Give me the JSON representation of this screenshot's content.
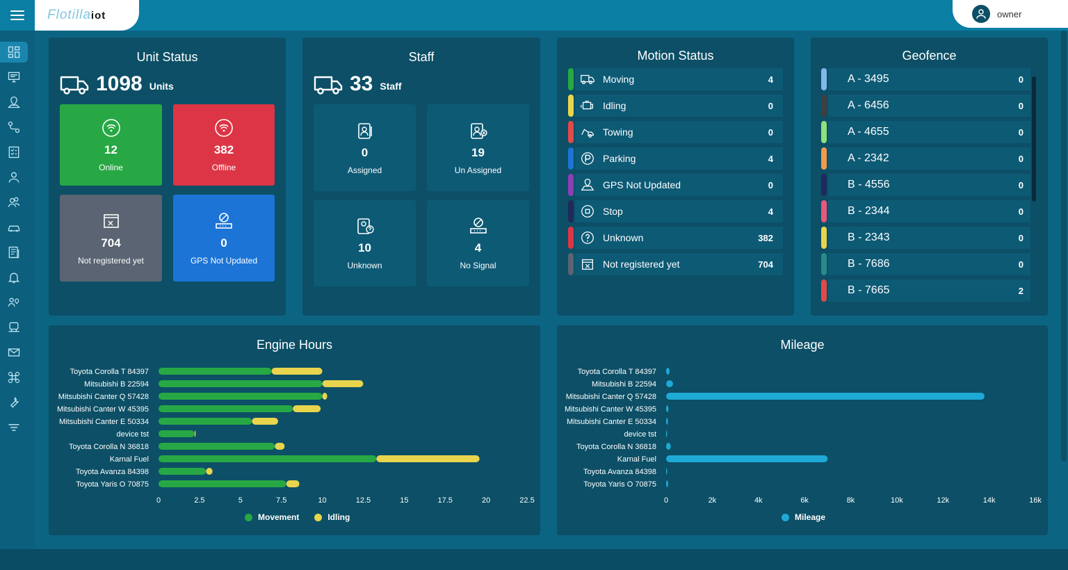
{
  "app": {
    "logo_text": "Flotilla",
    "logo_suffix": "iot"
  },
  "user": {
    "name": "owner"
  },
  "sidebar": {
    "items": [
      {
        "icon": "dashboard-icon"
      },
      {
        "icon": "monitor-icon"
      },
      {
        "icon": "map-pin-icon"
      },
      {
        "icon": "route-icon"
      },
      {
        "icon": "checklist-icon"
      },
      {
        "icon": "user-icon"
      },
      {
        "icon": "users-icon"
      },
      {
        "icon": "car-icon"
      },
      {
        "icon": "report-icon"
      },
      {
        "icon": "bell-icon"
      },
      {
        "icon": "location-user-icon"
      },
      {
        "icon": "device-icon"
      },
      {
        "icon": "mail-icon"
      },
      {
        "icon": "command-icon"
      },
      {
        "icon": "wrench-icon"
      },
      {
        "icon": "filter-icon"
      }
    ]
  },
  "unit_status": {
    "title": "Unit Status",
    "count": "1098",
    "unit": "Units",
    "tiles": [
      {
        "value": "12",
        "label": "Online",
        "color": "#27a844"
      },
      {
        "value": "382",
        "label": "Offline",
        "color": "#dc3545"
      },
      {
        "value": "704",
        "label": "Not registered yet",
        "color": "#5a6472"
      },
      {
        "value": "0",
        "label": "GPS Not Updated",
        "color": "#1c74d6"
      }
    ]
  },
  "staff": {
    "title": "Staff",
    "count": "33",
    "unit": "Staff",
    "tiles": [
      {
        "value": "0",
        "label": "Assigned"
      },
      {
        "value": "19",
        "label": "Un Assigned"
      },
      {
        "value": "10",
        "label": "Unknown"
      },
      {
        "value": "4",
        "label": "No Signal"
      }
    ]
  },
  "motion_status": {
    "title": "Motion Status",
    "rows": [
      {
        "label": "Moving",
        "value": "4",
        "color": "#27a844",
        "icon": "truck-icon"
      },
      {
        "label": "Idling",
        "value": "0",
        "color": "#e8d44d",
        "icon": "engine-icon"
      },
      {
        "label": "Towing",
        "value": "0",
        "color": "#e04a4a",
        "icon": "tow-icon"
      },
      {
        "label": "Parking",
        "value": "4",
        "color": "#1c74d6",
        "icon": "parking-icon"
      },
      {
        "label": "GPS Not Updated",
        "value": "0",
        "color": "#8b3fb5",
        "icon": "gps-map-icon"
      },
      {
        "label": "Stop",
        "value": "4",
        "color": "#1f2a5c",
        "icon": "stop-icon"
      },
      {
        "label": "Unknown",
        "value": "382",
        "color": "#dc3545",
        "icon": "question-icon"
      },
      {
        "label": "Not registered yet",
        "value": "704",
        "color": "#5a6472",
        "icon": "unregistered-icon"
      }
    ]
  },
  "geofence": {
    "title": "Geofence",
    "rows": [
      {
        "label": "A - 3495",
        "value": "0",
        "color": "#7fb8e8"
      },
      {
        "label": "A - 6456",
        "value": "0",
        "color": "#3f3f3f"
      },
      {
        "label": "A - 4655",
        "value": "0",
        "color": "#8ee07a"
      },
      {
        "label": "A - 2342",
        "value": "0",
        "color": "#f09a4a"
      },
      {
        "label": "B - 4556",
        "value": "0",
        "color": "#1e2a5e"
      },
      {
        "label": "B - 2344",
        "value": "0",
        "color": "#e8587a"
      },
      {
        "label": "B - 2343",
        "value": "0",
        "color": "#e8d44d"
      },
      {
        "label": "B - 7686",
        "value": "0",
        "color": "#2a8a88"
      },
      {
        "label": "B - 7665",
        "value": "2",
        "color": "#e04a4a"
      }
    ]
  },
  "chart_data": [
    {
      "type": "bar",
      "title": "Engine Hours",
      "categories": [
        "Toyota Corolla T 84397",
        "Mitsubishi B 22594",
        "Mitsubishi Canter Q 57428",
        "Mitsubishi Canter W 45395",
        "Mitsubishi Canter E 50334",
        "device tst",
        "Toyota Corolla N 36818",
        "Karnal Fuel",
        "Toyota Avanza 84398",
        "Toyota Yaris O 70875"
      ],
      "series": [
        {
          "name": "Movement",
          "color": "#27a844",
          "values": [
            6.9,
            10.0,
            10.0,
            8.2,
            5.7,
            2.2,
            7.1,
            13.3,
            2.9,
            7.8
          ]
        },
        {
          "name": "Idling",
          "color": "#e8d44d",
          "values": [
            3.1,
            2.5,
            0.3,
            1.7,
            1.6,
            0.05,
            0.6,
            6.3,
            0.4,
            0.8
          ]
        }
      ],
      "stacked": true,
      "orientation": "horizontal",
      "xlim": [
        0,
        22.5
      ],
      "xticks": [
        "0",
        "2.5",
        "5",
        "7.5",
        "10",
        "12.5",
        "15",
        "17.5",
        "20",
        "22.5"
      ],
      "legend": "bottom"
    },
    {
      "type": "bar",
      "title": "Mileage",
      "categories": [
        "Toyota Corolla T 84397",
        "Mitsubishi B 22594",
        "Mitsubishi Canter Q 57428",
        "Mitsubishi Canter W 45395",
        "Mitsubishi Canter E 50334",
        "device tst",
        "Toyota Corolla N 36818",
        "Karnal Fuel",
        "Toyota Avanza 84398",
        "Toyota Yaris O 70875"
      ],
      "series": [
        {
          "name": "Mileage",
          "color": "#1fa9d6",
          "values": [
            150,
            300,
            13800,
            100,
            80,
            10,
            200,
            7000,
            30,
            90
          ]
        }
      ],
      "orientation": "horizontal",
      "xlim": [
        0,
        16000
      ],
      "xticks": [
        "0",
        "2k",
        "4k",
        "6k",
        "8k",
        "10k",
        "12k",
        "14k",
        "16k"
      ],
      "legend": "bottom"
    }
  ]
}
